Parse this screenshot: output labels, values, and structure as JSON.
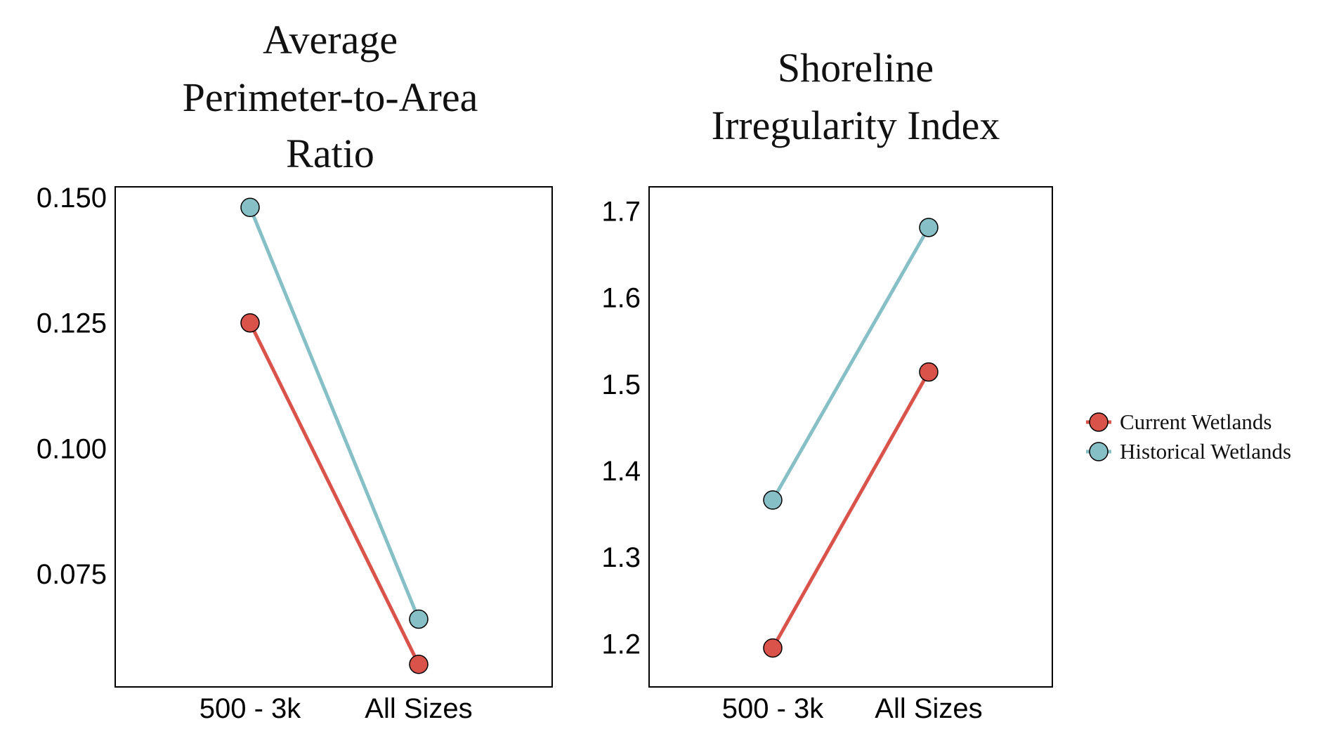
{
  "colors": {
    "current": "#d9534a",
    "historical": "#86c0c6",
    "stroke": "#000000"
  },
  "legend": {
    "position": "right",
    "entries": [
      {
        "label": "Current Wetlands",
        "key": "current"
      },
      {
        "label": "Historical Wetlands",
        "key": "historical"
      }
    ]
  },
  "chart_data": [
    {
      "type": "line",
      "title": [
        "Average",
        "Perimeter-to-Area",
        "Ratio"
      ],
      "categories": [
        "500 - 3k",
        "All Sizes"
      ],
      "series": [
        {
          "name": "Current Wetlands",
          "key": "current",
          "values": [
            0.125,
            0.057
          ]
        },
        {
          "name": "Historical Wetlands",
          "key": "historical",
          "values": [
            0.148,
            0.066
          ]
        }
      ],
      "yticks": [
        "0.150",
        "0.125",
        "0.100",
        "0.075"
      ],
      "ytick_values": [
        0.15,
        0.125,
        0.1,
        0.075
      ],
      "ylim": [
        0.0525,
        0.1521
      ],
      "grid": false
    },
    {
      "type": "line",
      "title": [
        "Shoreline",
        "Irregularity Index"
      ],
      "categories": [
        "500 - 3k",
        "All Sizes"
      ],
      "series": [
        {
          "name": "Current Wetlands",
          "key": "current",
          "values": [
            1.195,
            1.514
          ]
        },
        {
          "name": "Historical Wetlands",
          "key": "historical",
          "values": [
            1.366,
            1.681
          ]
        }
      ],
      "yticks": [
        "1.7",
        "1.6",
        "1.5",
        "1.4",
        "1.3",
        "1.2"
      ],
      "ytick_values": [
        1.7,
        1.6,
        1.5,
        1.4,
        1.3,
        1.2
      ],
      "ylim": [
        1.15,
        1.728
      ],
      "grid": false
    }
  ]
}
